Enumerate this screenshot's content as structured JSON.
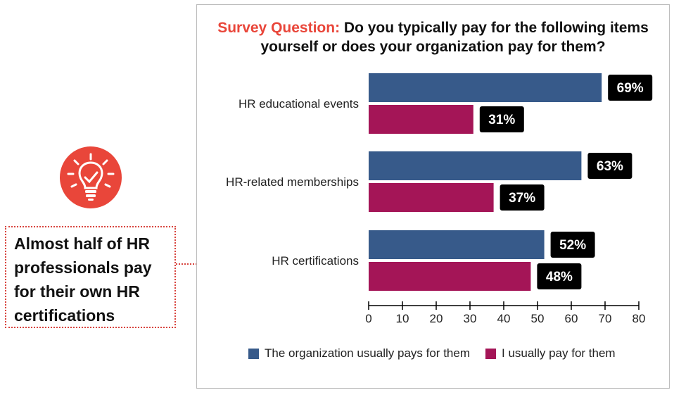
{
  "title": {
    "prefix": "Survey Question:",
    "text": "Do you typically pay for the following items yourself or does your organization pay for them?"
  },
  "callout": {
    "text": "Almost half of HR professionals pay for their own HR certifications",
    "icon": "lightbulb-check-icon",
    "accent_color": "#e9463a"
  },
  "chart_data": {
    "type": "bar",
    "orientation": "horizontal",
    "categories": [
      "HR educational events",
      "HR-related memberships",
      "HR certifications"
    ],
    "series": [
      {
        "name": "The organization usually pays for them",
        "color": "#375a8a",
        "values": [
          69,
          63,
          52
        ],
        "labels": [
          "69%",
          "63%",
          "52%"
        ]
      },
      {
        "name": "I usually pay for them",
        "color": "#a41557",
        "values": [
          31,
          37,
          48
        ],
        "labels": [
          "31%",
          "37%",
          "48%"
        ]
      }
    ],
    "xlim": [
      0,
      80
    ],
    "xticks": [
      0,
      10,
      20,
      30,
      40,
      50,
      60,
      70,
      80
    ],
    "xlabel": "",
    "ylabel": "",
    "grid": false,
    "legend": "bottom",
    "data_label_style": "white text on black badge"
  }
}
